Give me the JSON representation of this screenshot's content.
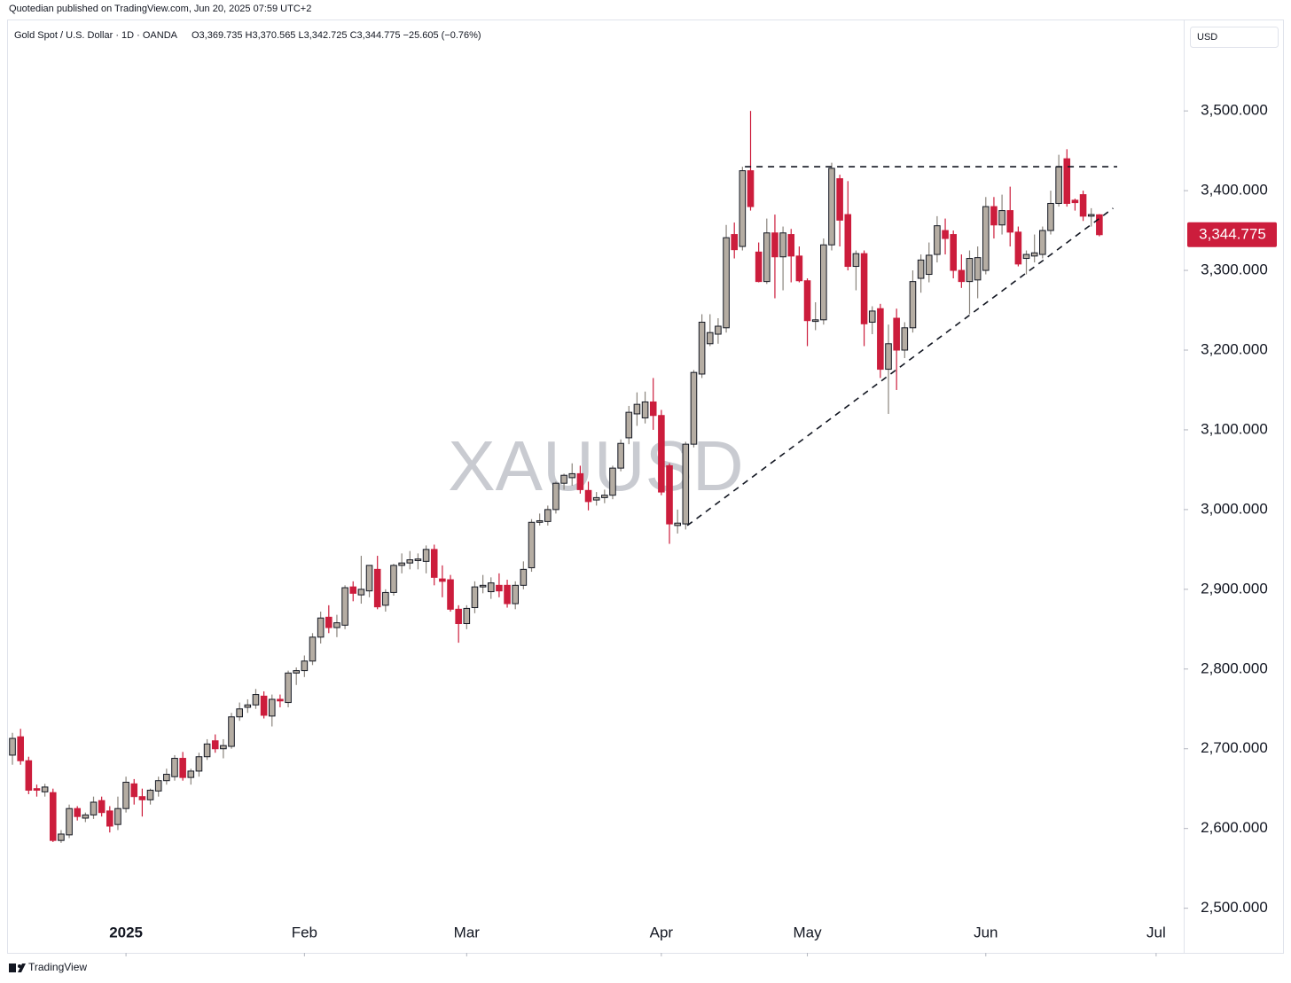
{
  "publisher": "Quotedian published on TradingView.com, Jun 20, 2025 07:59 UTC+2",
  "footer": "TradingView",
  "chart_data": {
    "type": "candlestick",
    "title": "Gold Spot / U.S. Dollar · 1D · OANDA",
    "legend_text": "O3,369.735  H3,370.565  L3,342.725  C3,344.775  −25.605 (−0.76%)",
    "currency": "USD",
    "watermark": "XAUUSD",
    "up_color": "#b5ada3",
    "down_color": "#cc1d3c",
    "open": [
      2692,
      2715,
      2685,
      2650,
      2646,
      2645,
      2585,
      2592,
      2625,
      2613,
      2617,
      2635,
      2622,
      2605,
      2625,
      2656,
      2640,
      2636,
      2647,
      2660,
      2665,
      2688,
      2664,
      2672,
      2690,
      2710,
      2700,
      2703,
      2740,
      2752,
      2755,
      2766,
      2741,
      2762,
      2758,
      2795,
      2798,
      2810,
      2840,
      2865,
      2852,
      2855,
      2903,
      2893,
      2898,
      2925,
      2880,
      2896,
      2930,
      2933,
      2936,
      2935,
      2950,
      2913,
      2912,
      2875,
      2857,
      2877,
      2903,
      2897,
      2905,
      2905,
      2882,
      2905,
      2927,
      2984,
      2985,
      3000,
      3033,
      3040,
      3045,
      3024,
      3012,
      3015,
      3018,
      3052,
      3090,
      3120,
      3115,
      3135,
      3118,
      3055,
      2980,
      2982,
      3082,
      3170,
      3208,
      3220,
      3228,
      3345,
      3330,
      3425,
      3323,
      3286,
      3347,
      3317,
      3345,
      3318,
      3287,
      3236,
      3238,
      3332,
      3415,
      3370,
      3305,
      3321,
      3235,
      3252,
      3176,
      3240,
      3200,
      3228,
      3290,
      3295,
      3320,
      3350,
      3345,
      3300,
      3286,
      3288,
      3300,
      3380,
      3357,
      3375,
      3348,
      3315,
      3318,
      3320,
      3350,
      3384,
      3440,
      3388,
      3395,
      3368,
      3369.735
    ],
    "high": [
      2720,
      2725,
      2690,
      2655,
      2656,
      2650,
      2598,
      2630,
      2628,
      2620,
      2640,
      2640,
      2628,
      2640,
      2665,
      2662,
      2650,
      2650,
      2665,
      2675,
      2692,
      2696,
      2675,
      2695,
      2712,
      2718,
      2712,
      2745,
      2758,
      2762,
      2775,
      2772,
      2768,
      2768,
      2798,
      2802,
      2817,
      2845,
      2872,
      2880,
      2868,
      2905,
      2910,
      2942,
      2930,
      2942,
      2900,
      2932,
      2945,
      2948,
      2945,
      2955,
      2956,
      2930,
      2918,
      2880,
      2880,
      2910,
      2918,
      2915,
      2920,
      2912,
      2910,
      2935,
      2988,
      2995,
      3005,
      3035,
      3045,
      3058,
      3055,
      3035,
      3022,
      3025,
      3055,
      3088,
      3130,
      3147,
      3148,
      3165,
      3125,
      3058,
      3000,
      3085,
      3175,
      3245,
      3245,
      3240,
      3357,
      3360,
      3430,
      3500,
      3335,
      3365,
      3370,
      3355,
      3352,
      3330,
      3290,
      3260,
      3340,
      3435,
      3420,
      3412,
      3325,
      3325,
      3255,
      3258,
      3232,
      3252,
      3235,
      3300,
      3320,
      3335,
      3368,
      3365,
      3350,
      3320,
      3325,
      3330,
      3392,
      3392,
      3395,
      3405,
      3355,
      3325,
      3345,
      3355,
      3400,
      3445,
      3452,
      3390,
      3400,
      3378,
      3370.565
    ],
    "low": [
      2680,
      2680,
      2643,
      2640,
      2640,
      2583,
      2582,
      2588,
      2610,
      2608,
      2612,
      2615,
      2595,
      2598,
      2620,
      2630,
      2615,
      2630,
      2640,
      2655,
      2660,
      2660,
      2655,
      2665,
      2686,
      2695,
      2688,
      2700,
      2735,
      2745,
      2750,
      2738,
      2728,
      2752,
      2752,
      2780,
      2790,
      2805,
      2832,
      2845,
      2840,
      2850,
      2885,
      2882,
      2890,
      2875,
      2872,
      2892,
      2920,
      2925,
      2925,
      2920,
      2905,
      2890,
      2872,
      2833,
      2850,
      2870,
      2895,
      2888,
      2890,
      2877,
      2875,
      2900,
      2922,
      2980,
      2980,
      2995,
      3025,
      3030,
      3020,
      2999,
      3005,
      3008,
      3013,
      3048,
      3082,
      3105,
      3108,
      3100,
      3018,
      2957,
      2970,
      2975,
      3078,
      3165,
      3205,
      3208,
      3222,
      3315,
      3325,
      3375,
      3285,
      3283,
      3265,
      3275,
      3285,
      3285,
      3205,
      3225,
      3232,
      3325,
      3330,
      3300,
      3275,
      3205,
      3220,
      3165,
      3120,
      3150,
      3190,
      3222,
      3272,
      3285,
      3310,
      3320,
      3290,
      3278,
      3245,
      3265,
      3295,
      3340,
      3345,
      3330,
      3305,
      3295,
      3310,
      3315,
      3345,
      3380,
      3380,
      3375,
      3362,
      3355,
      3342.725
    ],
    "close": [
      2713,
      2685,
      2648,
      2648,
      2652,
      2585,
      2593,
      2625,
      2615,
      2617,
      2633,
      2620,
      2603,
      2625,
      2658,
      2640,
      2636,
      2648,
      2660,
      2668,
      2688,
      2664,
      2672,
      2690,
      2706,
      2700,
      2704,
      2740,
      2750,
      2755,
      2768,
      2742,
      2762,
      2760,
      2795,
      2798,
      2810,
      2840,
      2864,
      2852,
      2858,
      2902,
      2895,
      2900,
      2930,
      2878,
      2896,
      2930,
      2933,
      2937,
      2938,
      2950,
      2915,
      2910,
      2875,
      2857,
      2876,
      2903,
      2905,
      2908,
      2898,
      2882,
      2905,
      2925,
      2984,
      2986,
      3000,
      3033,
      3043,
      3045,
      3025,
      3010,
      3015,
      3018,
      3052,
      3083,
      3122,
      3132,
      3135,
      3118,
      3022,
      2982,
      2983,
      3082,
      3172,
      3235,
      3222,
      3230,
      3341,
      3326,
      3425,
      3380,
      3286,
      3347,
      3317,
      3347,
      3318,
      3287,
      3237,
      3238,
      3332,
      3428,
      3363,
      3305,
      3321,
      3233,
      3249,
      3176,
      3208,
      3200,
      3228,
      3286,
      3313,
      3319,
      3356,
      3340,
      3300,
      3286,
      3315,
      3316,
      3380,
      3357,
      3375,
      3348,
      3308,
      3320,
      3322,
      3350,
      3384,
      3430,
      3384,
      3385,
      3368,
      3370,
      3344.775
    ],
    "xlim": [
      -0.55,
      144.4
    ],
    "xticks": [
      {
        "value": 14,
        "label": "2025"
      },
      {
        "value": 36,
        "label": "Feb"
      },
      {
        "value": 56,
        "label": "Mar"
      },
      {
        "value": 80,
        "label": "Apr"
      },
      {
        "value": 98,
        "label": "May"
      },
      {
        "value": 120,
        "label": "Jun"
      },
      {
        "value": 141,
        "label": "Jul"
      }
    ],
    "ylim": [
      2444,
      3608
    ],
    "yticks": [
      {
        "value": 2500,
        "label": "2,500.000"
      },
      {
        "value": 2600,
        "label": "2,600.000"
      },
      {
        "value": 2700,
        "label": "2,700.000"
      },
      {
        "value": 2800,
        "label": "2,800.000"
      },
      {
        "value": 2900,
        "label": "2,900.000"
      },
      {
        "value": 3000,
        "label": "3,000.000"
      },
      {
        "value": 3100,
        "label": "3,100.000"
      },
      {
        "value": 3200,
        "label": "3,200.000"
      },
      {
        "value": 3300,
        "label": "3,300.000"
      },
      {
        "value": 3400,
        "label": "3,400.000"
      },
      {
        "value": 3500,
        "label": "3,500.000"
      }
    ],
    "last_price": {
      "value": 3344.775,
      "label": "3,344.775"
    },
    "trendlines": [
      {
        "x": [
          90.3,
          136.2
        ],
        "y": [
          3430,
          3430
        ]
      },
      {
        "x": [
          83.2,
          135.7
        ],
        "y": [
          2980,
          3378
        ]
      }
    ]
  }
}
